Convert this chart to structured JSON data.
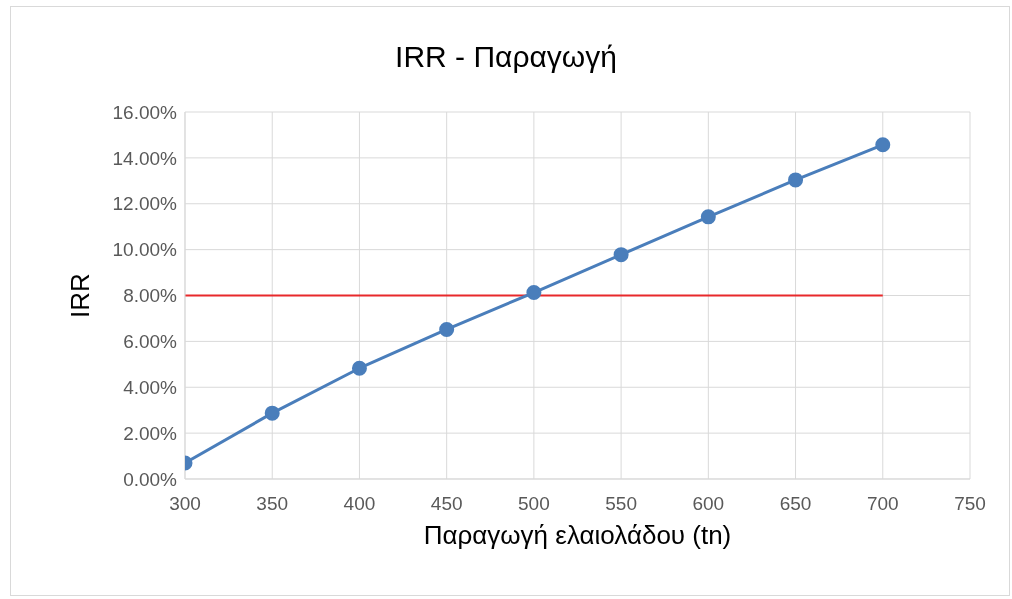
{
  "chart_data": {
    "type": "line",
    "title": "IRR - Παραγωγή",
    "xlabel": "Παραγωγή ελαιολάδου (tn)",
    "ylabel": "IRR",
    "x": [
      300,
      350,
      400,
      450,
      500,
      550,
      600,
      650,
      700
    ],
    "series": [
      {
        "color": "#4a7ebb",
        "values": [
          0.7,
          2.87,
          4.83,
          6.52,
          8.13,
          9.78,
          11.43,
          13.04,
          14.57
        ]
      },
      {
        "color": "#e8292b",
        "x": [
          300,
          700
        ],
        "values": [
          8,
          8
        ],
        "marker": "none"
      }
    ],
    "xlim": [
      300,
      750
    ],
    "xticks": [
      300,
      350,
      400,
      450,
      500,
      550,
      600,
      650,
      700,
      750
    ],
    "ylim": [
      0,
      16
    ],
    "yticks": [
      {
        "value": 0,
        "label": "0.00%"
      },
      {
        "value": 2,
        "label": "2.00%"
      },
      {
        "value": 4,
        "label": "4.00%"
      },
      {
        "value": 6,
        "label": "6.00%"
      },
      {
        "value": 8,
        "label": "8.00%"
      },
      {
        "value": 10,
        "label": "10.00%"
      },
      {
        "value": 12,
        "label": "12.00%"
      },
      {
        "value": 14,
        "label": "14.00%"
      },
      {
        "value": 16,
        "label": "16.00%"
      }
    ],
    "grid": true,
    "marker": "circle",
    "line_style": "solid"
  }
}
